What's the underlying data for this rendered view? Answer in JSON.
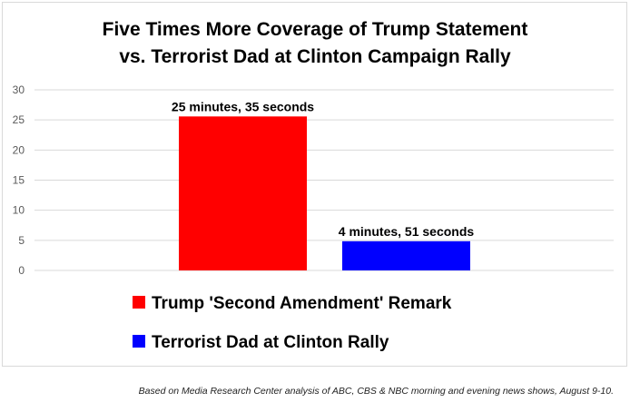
{
  "chart_data": {
    "type": "bar",
    "title_lines": [
      "Five Times More Coverage of Trump Statement",
      "vs. Terrorist Dad at Clinton Campaign Rally"
    ],
    "categories": [
      "Trump 'Second Amendment' Remark",
      "Terrorist Dad at Clinton Rally"
    ],
    "values": [
      25.58,
      4.85
    ],
    "data_labels": [
      "25 minutes, 35 seconds",
      "4 minutes, 51 seconds"
    ],
    "colors": [
      "#ff0000",
      "#0000ff"
    ],
    "ylim": [
      0,
      30
    ],
    "yticks": [
      "0",
      "5",
      "10",
      "15",
      "20",
      "25",
      "30"
    ],
    "grid": true,
    "legend_position": "bottom-center",
    "legend": [
      "Trump 'Second Amendment' Remark",
      "Terrorist Dad at Clinton Rally"
    ]
  },
  "source_note": "Based on Media Research Center analysis of ABC, CBS & NBC morning and evening news shows, August 9-10."
}
